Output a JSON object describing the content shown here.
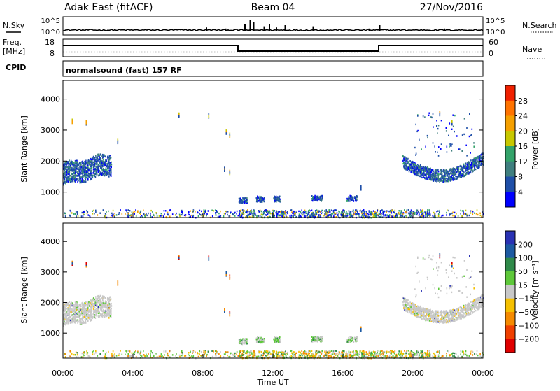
{
  "header": {
    "station": "Adak East (fitACF)",
    "beam": "Beam 04",
    "date": "27/Nov/2016"
  },
  "top_panels": {
    "nsky_label": "N.Sky",
    "nsky_ticks": [
      "10^5",
      "10^0"
    ],
    "nsearch_label": "N.Search",
    "nsearch_ticks": [
      "10^5",
      "10^0"
    ],
    "freq_label": "Freq.",
    "freq_unit": "[MHz]",
    "freq_ticks": [
      "18",
      "8"
    ],
    "nave_label": "Nave",
    "nave_ticks": [
      "60",
      "0"
    ],
    "cpid_label": "CPID",
    "cpid_text": "normalsound (fast) 157 RF"
  },
  "chart_data": [
    {
      "type": "heatmap",
      "name": "power",
      "ylabel": "Slant Range [km]",
      "ylim": [
        180,
        4600
      ],
      "yticks": [
        "1000",
        "2000",
        "3000",
        "4000"
      ],
      "colorbar_label": "Power [dB]",
      "colorbar_ticks": [
        "4",
        "8",
        "12",
        "16",
        "20",
        "24",
        "28"
      ],
      "colors": [
        "#0000ff",
        "#1f4fa8",
        "#3f7f7f",
        "#33a36a",
        "#c8c800",
        "#f5a000",
        "#ff7300",
        "#f02000"
      ]
    },
    {
      "type": "heatmap",
      "name": "velocity",
      "ylabel": "Slant Range [km]",
      "ylim": [
        180,
        4600
      ],
      "yticks": [
        "1000",
        "2000",
        "3000",
        "4000"
      ],
      "colorbar_label": "Velocity [m s⁻¹]",
      "colorbar_ticks": [
        "200",
        "100",
        "50",
        "15",
        "−15",
        "−50",
        "−100",
        "−200"
      ],
      "colors": [
        "#2a32b4",
        "#1d5aa2",
        "#2f8a4a",
        "#5ec83a",
        "#c8c8c8",
        "#f5c000",
        "#f58a00",
        "#f04000",
        "#e00000"
      ]
    }
  ],
  "xaxis": {
    "label": "Time UT",
    "ticks": [
      "00:00",
      "04:00",
      "08:00",
      "12:00",
      "16:00",
      "20:00",
      "00:00"
    ]
  }
}
